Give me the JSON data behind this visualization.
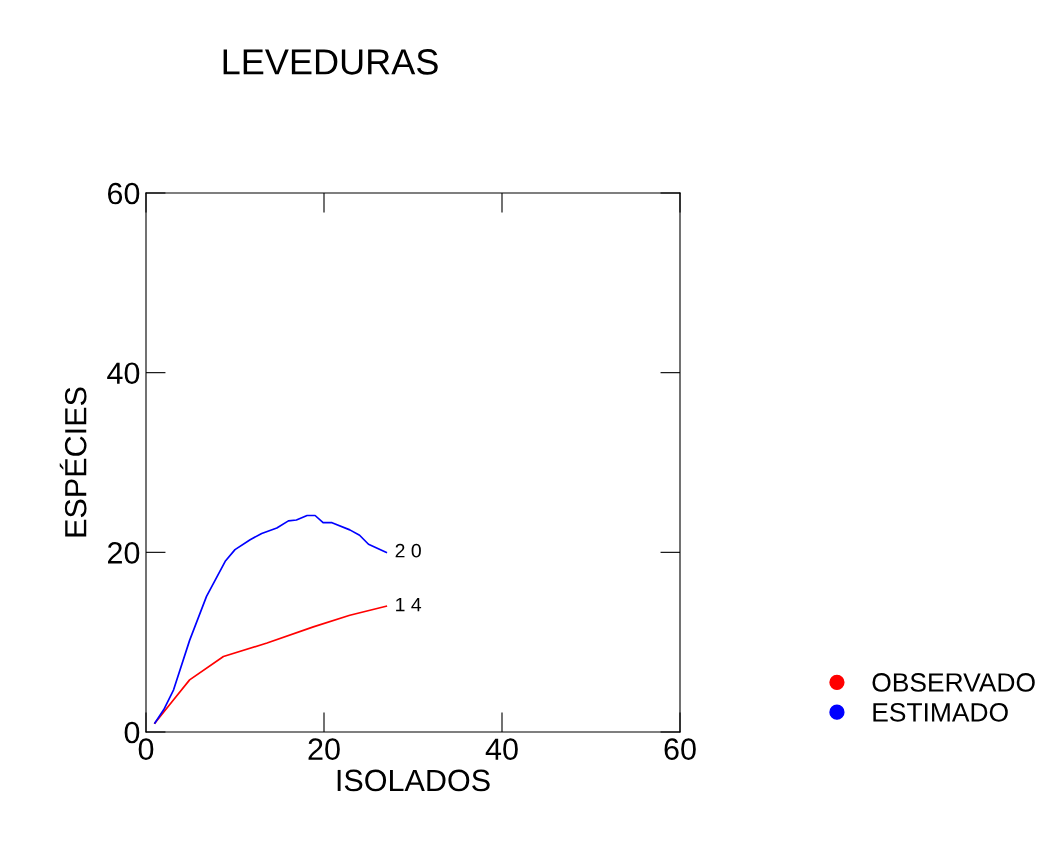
{
  "chart_data": {
    "type": "line",
    "title": "LEVEDURAS",
    "xlabel": "ISOLADOS",
    "ylabel": "ESPÉCIES",
    "xlim": [
      0,
      60
    ],
    "ylim": [
      0,
      60
    ],
    "xticks": [
      0,
      20,
      40,
      60
    ],
    "yticks": [
      0,
      20,
      40,
      60
    ],
    "grid": false,
    "legend": "right",
    "marker": "none",
    "line_style": "solid",
    "series": [
      {
        "name": "OBSERVADO",
        "color": "#ff0000",
        "x": [
          1,
          3.1,
          4.9,
          8.7,
          13.6,
          18.8,
          22.9,
          27
        ],
        "values": [
          1,
          3.6,
          5.8,
          8.4,
          9.9,
          11.7,
          13.0,
          14.0
        ]
      },
      {
        "name": "ESTIMADO",
        "color": "#0000ff",
        "x": [
          1,
          2,
          3.1,
          4.9,
          6.8,
          8.9,
          10,
          11.7,
          13,
          14.7,
          16,
          16.9,
          18.1,
          19,
          19.9,
          20.9,
          22.9,
          24,
          25,
          27
        ],
        "values": [
          1,
          2.5,
          4.7,
          10.2,
          15.1,
          19.0,
          20.3,
          21.4,
          22.1,
          22.7,
          23.5,
          23.6,
          24.1,
          24.1,
          23.3,
          23.3,
          22.5,
          21.9,
          20.9,
          20.0
        ]
      }
    ],
    "annotations": [
      {
        "text": "2 0",
        "x": 27,
        "y": 20
      },
      {
        "text": "1 4",
        "x": 27,
        "y": 14
      }
    ]
  }
}
